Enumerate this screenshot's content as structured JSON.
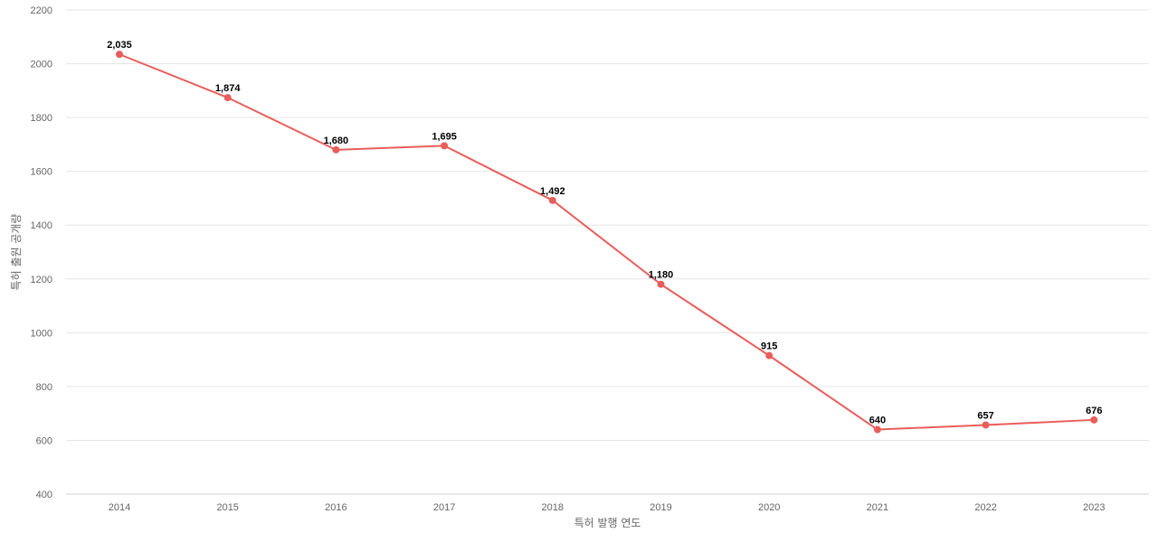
{
  "chart_data": {
    "type": "line",
    "title": "",
    "xlabel": "특허 발행 연도",
    "ylabel": "특허 출원 공개량",
    "categories": [
      "2014",
      "2015",
      "2016",
      "2017",
      "2018",
      "2019",
      "2020",
      "2021",
      "2022",
      "2023"
    ],
    "series": [
      {
        "values": [
          2035,
          1874,
          1680,
          1695,
          1492,
          1180,
          915,
          640,
          657,
          676
        ],
        "data_labels": [
          "2,035",
          "1,874",
          "1,680",
          "1,695",
          "1,492",
          "1,180",
          "915",
          "640",
          "657",
          "676"
        ],
        "color": "#e95d5a"
      }
    ],
    "ylim": [
      400,
      2200
    ],
    "yticks": [
      "400",
      "600",
      "800",
      "1000",
      "1200",
      "1400",
      "1600",
      "1800",
      "2000",
      "2200"
    ],
    "grid": true,
    "legend": "none"
  }
}
